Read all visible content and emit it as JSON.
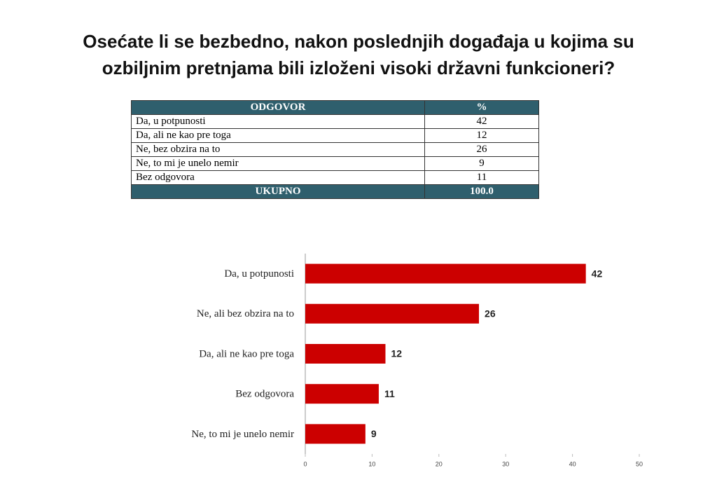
{
  "title": [
    "Osećate li se bezbedno, nakon poslednjih događaja u kojima su",
    "ozbiljnim pretnjama bili izloženi visoki državni funkcioneri?"
  ],
  "table": {
    "header": [
      "ODGOVOR",
      "%"
    ],
    "rows": [
      [
        "Da, u potpunosti",
        42
      ],
      [
        "Da, ali ne kao pre toga",
        12
      ],
      [
        "Ne, bez obzira na to",
        26
      ],
      [
        "Ne, to mi je unelo nemir",
        9
      ],
      [
        "Bez odgovora",
        11
      ]
    ],
    "footer": [
      "UKUPNO",
      "100.0"
    ]
  },
  "chart_data": {
    "type": "bar",
    "orientation": "horizontal",
    "categories": [
      "Da, u potpunosti",
      "Ne, ali bez obzira na to",
      "Da, ali ne kao pre toga",
      "Bez odgovora",
      "Ne, to mi je unelo nemir"
    ],
    "values": [
      42,
      26,
      12,
      11,
      9
    ],
    "color": "#cc0000",
    "xlim": [
      0,
      50
    ],
    "xticks": [
      0,
      10,
      20,
      30,
      40,
      50
    ]
  }
}
